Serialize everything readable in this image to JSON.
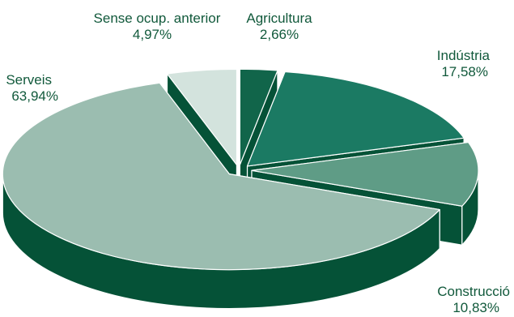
{
  "chart_data": {
    "type": "pie",
    "title": "",
    "slices": [
      {
        "label": "Agricultura",
        "value_label": "2,66%",
        "value": 2.66,
        "color": "#11654a"
      },
      {
        "label": "Indústria",
        "value_label": "17,58%",
        "value": 17.58,
        "color": "#1b7a63"
      },
      {
        "label": "Construcció",
        "value_label": "10,83%",
        "value": 10.83,
        "color": "#5f9c86"
      },
      {
        "label": "Serveis",
        "value_label": "63,94%",
        "value": 63.94,
        "color": "#9bbdb0"
      },
      {
        "label": "Sense ocup. anterior",
        "value_label": "4,97%",
        "value": 4.97,
        "color": "#d3e3dd"
      }
    ],
    "side_color": "#055237",
    "exploded": true,
    "three_d": true
  }
}
